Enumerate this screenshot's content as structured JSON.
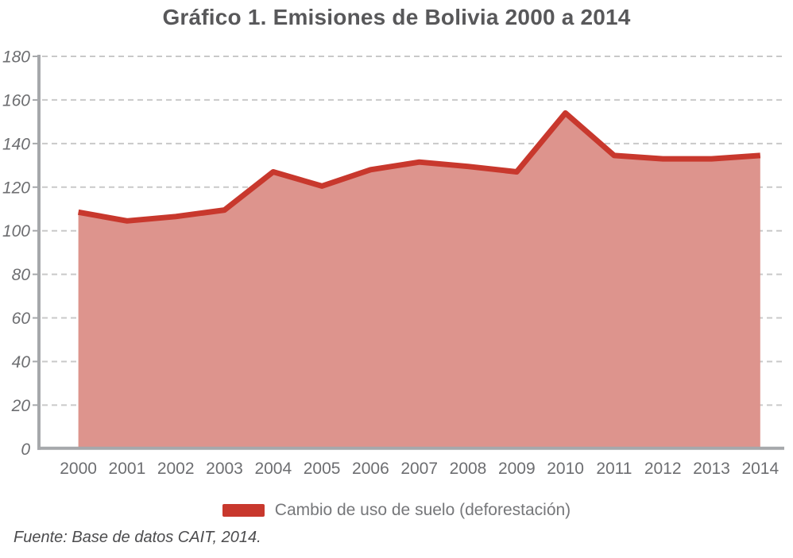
{
  "figure": {
    "title": "Gráfico 1. Emisiones de Bolivia 2000 a 2014",
    "source_note": "Fuente: Base de datos CAIT, 2014."
  },
  "legend": {
    "label": "Cambio de uso de suelo (deforestación)"
  },
  "colors": {
    "line": "#c8382d",
    "fill": "#dd948d",
    "legend_swatch": "#c8382d",
    "grid": "#c9c9c9",
    "axis": "#a6a8ab",
    "tick_text": "#6d6e71",
    "title_text": "#58585a",
    "legend_text": "#76777a",
    "source_text": "#4c4c4e"
  },
  "chart_data": {
    "type": "area",
    "title": "Gráfico 1. Emisiones de Bolivia 2000 a 2014",
    "x": [
      "2000",
      "2001",
      "2002",
      "2003",
      "2004",
      "2005",
      "2006",
      "2007",
      "2008",
      "2009",
      "2010",
      "2011",
      "2012",
      "2013",
      "2014"
    ],
    "series": [
      {
        "name": "Cambio de uso de suelo (deforestación)",
        "values": [
          108.5,
          104.5,
          106.5,
          109.5,
          127,
          120.5,
          128,
          131.5,
          129.5,
          127,
          154,
          134.5,
          133,
          133,
          134.5
        ]
      }
    ],
    "xlabel": "",
    "ylabel": "",
    "ylim": [
      0,
      180
    ],
    "ytick_step": 20,
    "grid": "horizontal-dashed",
    "legend_position": "bottom",
    "source": "Fuente: Base de datos CAIT, 2014."
  }
}
